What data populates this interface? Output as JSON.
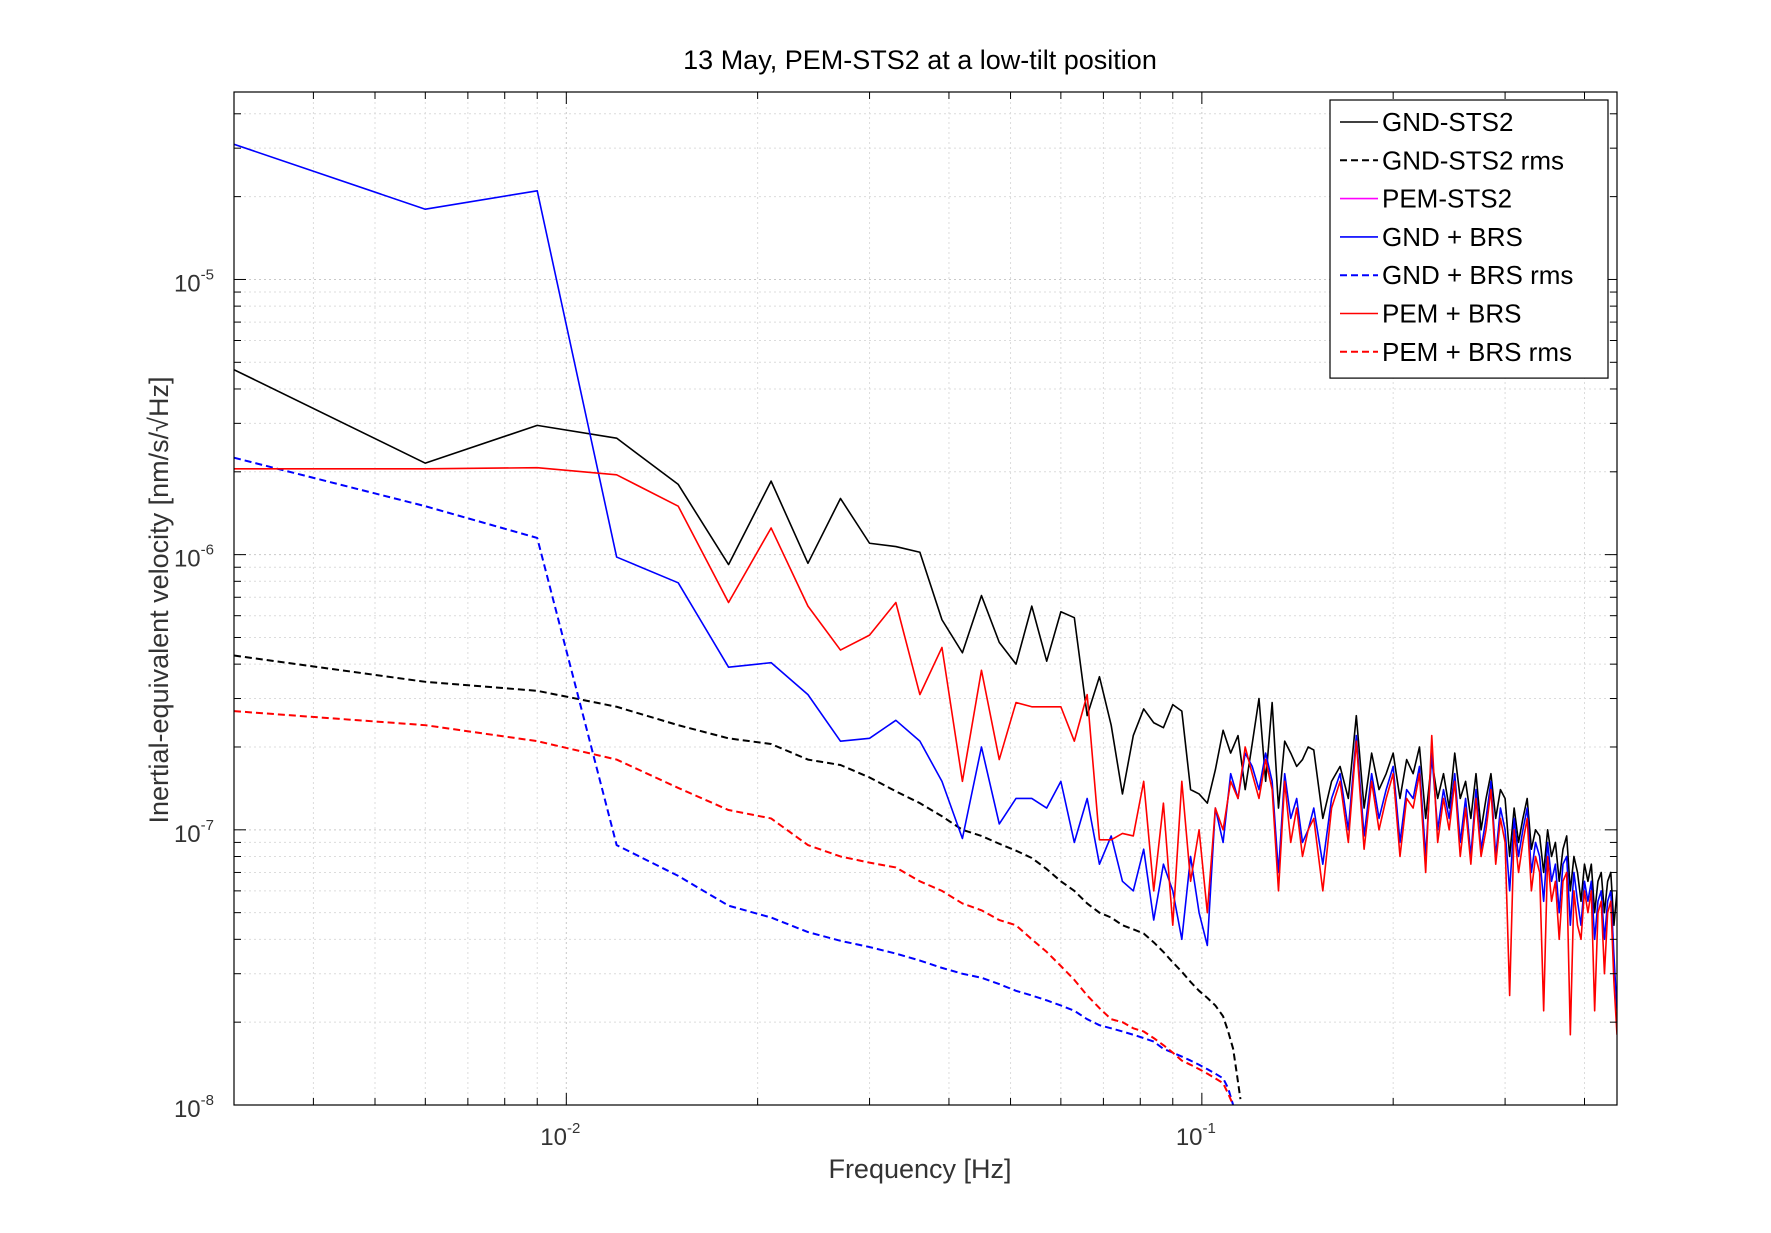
{
  "chart_data": {
    "type": "line",
    "title": "13 May, PEM-STS2 at a low-tilt position",
    "xlabel": "Frequency [Hz]",
    "ylabel": "Inertial-equivalent velocity [nm/s/√Hz]",
    "xscale": "log",
    "yscale": "log",
    "xlim": [
      0.003,
      0.45
    ],
    "ylim": [
      1e-08,
      4.8e-05
    ],
    "grid": true,
    "legend_position": "top-right",
    "x_ticks": [
      {
        "value": 0.01,
        "base": "10",
        "exp": "-2"
      },
      {
        "value": 0.1,
        "base": "10",
        "exp": "-1"
      }
    ],
    "y_ticks": [
      {
        "value": 1e-08,
        "base": "10",
        "exp": "-8"
      },
      {
        "value": 1e-07,
        "base": "10",
        "exp": "-7"
      },
      {
        "value": 1e-06,
        "base": "10",
        "exp": "-6"
      },
      {
        "value": 1e-05,
        "base": "10",
        "exp": "-5"
      }
    ],
    "series": [
      {
        "name": "GND-STS2",
        "color": "#000000",
        "dash": "solid",
        "width": 1.6,
        "x": [
          0.003,
          0.006,
          0.009,
          0.012,
          0.015,
          0.018,
          0.021,
          0.024,
          0.027,
          0.03,
          0.033,
          0.036,
          0.039,
          0.042,
          0.045,
          0.048,
          0.051,
          0.054,
          0.057,
          0.06,
          0.063,
          0.066,
          0.069,
          0.072,
          0.075,
          0.078,
          0.081,
          0.084,
          0.087,
          0.09,
          0.093,
          0.096,
          0.099,
          0.102,
          0.105,
          0.108,
          0.111,
          0.114,
          0.117,
          0.12,
          0.123,
          0.126,
          0.129,
          0.132,
          0.135,
          0.138,
          0.141,
          0.144,
          0.147,
          0.15,
          0.155,
          0.16,
          0.165,
          0.17,
          0.175,
          0.18,
          0.185,
          0.19,
          0.195,
          0.2,
          0.205,
          0.21,
          0.215,
          0.22,
          0.225,
          0.23,
          0.235,
          0.24,
          0.245,
          0.25,
          0.255,
          0.26,
          0.265,
          0.27,
          0.275,
          0.28,
          0.285,
          0.29,
          0.295,
          0.3,
          0.305,
          0.31,
          0.315,
          0.32,
          0.325,
          0.33,
          0.335,
          0.34,
          0.345,
          0.35,
          0.355,
          0.36,
          0.365,
          0.37,
          0.375,
          0.38,
          0.385,
          0.39,
          0.395,
          0.4,
          0.405,
          0.41,
          0.415,
          0.42,
          0.425,
          0.43,
          0.435,
          0.44,
          0.445,
          0.45
        ],
        "y": [
          4.7e-06,
          2.15e-06,
          2.95e-06,
          2.65e-06,
          1.8e-06,
          9.2e-07,
          1.85e-06,
          9.3e-07,
          1.6e-06,
          1.1e-06,
          1.07e-06,
          1.02e-06,
          5.8e-07,
          4.4e-07,
          7.1e-07,
          4.8e-07,
          4e-07,
          6.5e-07,
          4.1e-07,
          6.2e-07,
          5.9e-07,
          2.6e-07,
          3.6e-07,
          2.4e-07,
          1.35e-07,
          2.2e-07,
          2.75e-07,
          2.45e-07,
          2.35e-07,
          2.85e-07,
          2.7e-07,
          1.4e-07,
          1.35e-07,
          1.25e-07,
          1.65e-07,
          2.3e-07,
          1.9e-07,
          2.2e-07,
          1.4e-07,
          2.05e-07,
          3e-07,
          1.5e-07,
          2.9e-07,
          1.2e-07,
          2.1e-07,
          1.9e-07,
          1.7e-07,
          1.8e-07,
          2e-07,
          1.95e-07,
          1.1e-07,
          1.5e-07,
          1.7e-07,
          1.3e-07,
          2.6e-07,
          1.2e-07,
          1.9e-07,
          1.4e-07,
          1.6e-07,
          1.9e-07,
          1.3e-07,
          1.8e-07,
          1.6e-07,
          2e-07,
          1.1e-07,
          1.8e-07,
          1.3e-07,
          1.6e-07,
          1.2e-07,
          1.9e-07,
          1.3e-07,
          1.5e-07,
          1.1e-07,
          1.6e-07,
          1e-07,
          1.3e-07,
          1.6e-07,
          1.1e-07,
          1.4e-07,
          1.3e-07,
          8e-08,
          1.2e-07,
          9e-08,
          1.1e-07,
          1.3e-07,
          8.5e-08,
          1e-07,
          9.5e-08,
          7e-08,
          1e-07,
          8e-08,
          9e-08,
          6.5e-08,
          8.5e-08,
          9.5e-08,
          6e-08,
          8e-08,
          7e-08,
          5.5e-08,
          7.5e-08,
          6.5e-08,
          7.5e-08,
          5e-08,
          6.5e-08,
          7e-08,
          5e-08,
          6.5e-08,
          7e-08,
          4.5e-08,
          6e-08
        ]
      },
      {
        "name": "GND-STS2 rms",
        "color": "#000000",
        "dash": "dashed",
        "width": 2,
        "x": [
          0.003,
          0.006,
          0.009,
          0.012,
          0.015,
          0.018,
          0.021,
          0.024,
          0.027,
          0.03,
          0.033,
          0.036,
          0.039,
          0.042,
          0.045,
          0.048,
          0.051,
          0.054,
          0.057,
          0.06,
          0.063,
          0.066,
          0.069,
          0.072,
          0.075,
          0.078,
          0.081,
          0.084,
          0.087,
          0.09,
          0.093,
          0.096,
          0.099,
          0.102,
          0.105,
          0.108,
          0.11,
          0.112,
          0.1135,
          0.115
        ],
        "y": [
          4.3e-07,
          3.45e-07,
          3.2e-07,
          2.8e-07,
          2.4e-07,
          2.15e-07,
          2.05e-07,
          1.8e-07,
          1.72e-07,
          1.55e-07,
          1.38e-07,
          1.25e-07,
          1.12e-07,
          1e-07,
          9.5e-08,
          8.9e-08,
          8.4e-08,
          7.9e-08,
          7.2e-08,
          6.5e-08,
          6e-08,
          5.4e-08,
          5e-08,
          4.8e-08,
          4.5e-08,
          4.35e-08,
          4.2e-08,
          3.9e-08,
          3.6e-08,
          3.3e-08,
          3.05e-08,
          2.8e-08,
          2.6e-08,
          2.45e-08,
          2.3e-08,
          2.1e-08,
          1.85e-08,
          1.6e-08,
          1.3e-08,
          1.05e-08
        ]
      },
      {
        "name": "PEM-STS2",
        "color": "#ff00ff",
        "dash": "solid",
        "width": 1.6,
        "x": [],
        "y": []
      },
      {
        "name": "GND + BRS",
        "color": "#0000ff",
        "dash": "solid",
        "width": 1.6,
        "x": [
          0.003,
          0.006,
          0.009,
          0.012,
          0.015,
          0.018,
          0.021,
          0.024,
          0.027,
          0.03,
          0.033,
          0.036,
          0.039,
          0.042,
          0.045,
          0.048,
          0.051,
          0.054,
          0.057,
          0.06,
          0.063,
          0.066,
          0.069,
          0.072,
          0.075,
          0.078,
          0.081,
          0.084,
          0.087,
          0.09,
          0.093,
          0.096,
          0.099,
          0.102,
          0.105,
          0.108,
          0.111,
          0.114,
          0.117,
          0.12,
          0.123,
          0.126,
          0.129,
          0.132,
          0.135,
          0.138,
          0.141,
          0.144,
          0.147,
          0.15,
          0.155,
          0.16,
          0.165,
          0.17,
          0.175,
          0.18,
          0.185,
          0.19,
          0.195,
          0.2,
          0.205,
          0.21,
          0.215,
          0.22,
          0.225,
          0.23,
          0.235,
          0.24,
          0.245,
          0.25,
          0.255,
          0.26,
          0.265,
          0.27,
          0.275,
          0.28,
          0.285,
          0.29,
          0.295,
          0.3,
          0.305,
          0.31,
          0.315,
          0.32,
          0.325,
          0.33,
          0.335,
          0.34,
          0.345,
          0.35,
          0.355,
          0.36,
          0.365,
          0.37,
          0.375,
          0.38,
          0.385,
          0.39,
          0.395,
          0.4,
          0.405,
          0.41,
          0.415,
          0.42,
          0.425,
          0.43,
          0.435,
          0.44,
          0.445,
          0.45
        ],
        "y": [
          3.1e-05,
          1.8e-05,
          2.1e-05,
          9.8e-07,
          7.9e-07,
          3.9e-07,
          4.05e-07,
          3.1e-07,
          2.1e-07,
          2.15e-07,
          2.5e-07,
          2.1e-07,
          1.5e-07,
          9.3e-08,
          2e-07,
          1.05e-07,
          1.3e-07,
          1.3e-07,
          1.2e-07,
          1.5e-07,
          9e-08,
          1.3e-07,
          7.5e-08,
          9.5e-08,
          6.5e-08,
          6e-08,
          8.5e-08,
          4.7e-08,
          7.5e-08,
          6e-08,
          4e-08,
          8e-08,
          5e-08,
          3.8e-08,
          1.2e-07,
          9e-08,
          1.6e-07,
          1.3e-07,
          1.9e-07,
          1.7e-07,
          1.4e-07,
          1.9e-07,
          1.5e-07,
          7e-08,
          1.6e-07,
          1.1e-07,
          1.3e-07,
          9e-08,
          1e-07,
          1.2e-07,
          7.5e-08,
          1.3e-07,
          1.6e-07,
          1e-07,
          2.2e-07,
          9.5e-08,
          1.6e-07,
          1.1e-07,
          1.4e-07,
          1.7e-07,
          9e-08,
          1.4e-07,
          1.3e-07,
          1.7e-07,
          8e-08,
          1.9e-07,
          1e-07,
          1.4e-07,
          1.1e-07,
          1.6e-07,
          9e-08,
          1.3e-07,
          8e-08,
          1.4e-07,
          8.5e-08,
          1.1e-07,
          1.5e-07,
          8e-08,
          1.2e-07,
          1e-07,
          6e-08,
          1.1e-07,
          8e-08,
          1e-07,
          1.2e-07,
          7e-08,
          9e-08,
          8e-08,
          5.5e-08,
          9e-08,
          6.5e-08,
          7.5e-08,
          5e-08,
          7.5e-08,
          8e-08,
          4.5e-08,
          7e-08,
          5.5e-08,
          4.5e-08,
          6.5e-08,
          5.5e-08,
          6.5e-08,
          4e-08,
          5.5e-08,
          6e-08,
          4e-08,
          5.5e-08,
          6e-08,
          3.5e-08,
          2.2e-08
        ]
      },
      {
        "name": "GND + BRS rms",
        "color": "#0000ff",
        "dash": "dashed",
        "width": 2,
        "x": [
          0.003,
          0.006,
          0.009,
          0.012,
          0.015,
          0.018,
          0.021,
          0.024,
          0.027,
          0.03,
          0.033,
          0.036,
          0.039,
          0.042,
          0.045,
          0.048,
          0.051,
          0.054,
          0.057,
          0.06,
          0.063,
          0.066,
          0.069,
          0.072,
          0.075,
          0.078,
          0.081,
          0.084,
          0.087,
          0.09,
          0.093,
          0.096,
          0.099,
          0.102,
          0.105,
          0.108,
          0.11,
          0.112
        ],
        "y": [
          2.25e-06,
          1.5e-06,
          1.15e-06,
          8.8e-08,
          6.8e-08,
          5.3e-08,
          4.8e-08,
          4.25e-08,
          3.95e-08,
          3.75e-08,
          3.55e-08,
          3.35e-08,
          3.15e-08,
          3e-08,
          2.9e-08,
          2.75e-08,
          2.6e-08,
          2.5e-08,
          2.4e-08,
          2.3e-08,
          2.2e-08,
          2.05e-08,
          1.95e-08,
          1.9e-08,
          1.85e-08,
          1.8e-08,
          1.75e-08,
          1.7e-08,
          1.6e-08,
          1.55e-08,
          1.5e-08,
          1.45e-08,
          1.4e-08,
          1.35e-08,
          1.3e-08,
          1.25e-08,
          1.15e-08,
          1e-08
        ]
      },
      {
        "name": "PEM + BRS",
        "color": "#ff0000",
        "dash": "solid",
        "width": 1.6,
        "x": [
          0.003,
          0.006,
          0.009,
          0.012,
          0.015,
          0.018,
          0.021,
          0.024,
          0.027,
          0.03,
          0.033,
          0.036,
          0.039,
          0.042,
          0.045,
          0.048,
          0.051,
          0.054,
          0.057,
          0.06,
          0.063,
          0.066,
          0.069,
          0.072,
          0.075,
          0.078,
          0.081,
          0.084,
          0.087,
          0.09,
          0.093,
          0.096,
          0.099,
          0.102,
          0.105,
          0.108,
          0.111,
          0.114,
          0.117,
          0.12,
          0.123,
          0.126,
          0.129,
          0.132,
          0.135,
          0.138,
          0.141,
          0.144,
          0.147,
          0.15,
          0.155,
          0.16,
          0.165,
          0.17,
          0.175,
          0.18,
          0.185,
          0.19,
          0.195,
          0.2,
          0.205,
          0.21,
          0.215,
          0.22,
          0.225,
          0.23,
          0.235,
          0.24,
          0.245,
          0.25,
          0.255,
          0.26,
          0.265,
          0.27,
          0.275,
          0.28,
          0.285,
          0.29,
          0.295,
          0.3,
          0.305,
          0.31,
          0.315,
          0.32,
          0.325,
          0.33,
          0.335,
          0.34,
          0.345,
          0.35,
          0.355,
          0.36,
          0.365,
          0.37,
          0.375,
          0.38,
          0.385,
          0.39,
          0.395,
          0.4,
          0.405,
          0.41,
          0.415,
          0.42,
          0.425,
          0.43,
          0.435,
          0.44,
          0.445,
          0.45
        ],
        "y": [
          2.05e-06,
          2.05e-06,
          2.07e-06,
          1.95e-06,
          1.5e-06,
          6.7e-07,
          1.25e-06,
          6.5e-07,
          4.5e-07,
          5.1e-07,
          6.7e-07,
          3.1e-07,
          4.6e-07,
          1.5e-07,
          3.8e-07,
          1.8e-07,
          2.9e-07,
          2.8e-07,
          2.8e-07,
          2.8e-07,
          2.1e-07,
          3.1e-07,
          9.2e-08,
          9.2e-08,
          9.7e-08,
          9.5e-08,
          1.5e-07,
          6e-08,
          1.25e-07,
          4.5e-08,
          1.5e-07,
          6.5e-08,
          1e-07,
          5e-08,
          1.2e-07,
          1e-07,
          1.5e-07,
          1.3e-07,
          2e-07,
          1.6e-07,
          1.3e-07,
          1.8e-07,
          1.4e-07,
          6e-08,
          1.5e-07,
          9e-08,
          1.2e-07,
          8e-08,
          1e-07,
          1.1e-07,
          6e-08,
          1.2e-07,
          1.5e-07,
          9e-08,
          2.1e-07,
          8.5e-08,
          1.5e-07,
          1e-07,
          1.3e-07,
          1.6e-07,
          8e-08,
          1.3e-07,
          1.2e-07,
          1.6e-07,
          7e-08,
          2.2e-07,
          9e-08,
          1.3e-07,
          1e-07,
          1.5e-07,
          8e-08,
          1.2e-07,
          7.5e-08,
          1.3e-07,
          8e-08,
          1e-07,
          1.4e-07,
          7.5e-08,
          1.1e-07,
          9e-08,
          2.5e-08,
          1e-07,
          7e-08,
          9e-08,
          1.1e-07,
          6e-08,
          8e-08,
          7e-08,
          2.2e-08,
          8e-08,
          5.5e-08,
          6.5e-08,
          4e-08,
          6.5e-08,
          7e-08,
          1.8e-08,
          6e-08,
          4.5e-08,
          4e-08,
          6e-08,
          5e-08,
          6e-08,
          2.2e-08,
          5e-08,
          5.5e-08,
          3e-08,
          5e-08,
          5.5e-08,
          2.8e-08,
          1.8e-08
        ]
      },
      {
        "name": "PEM + BRS rms",
        "color": "#ff0000",
        "dash": "dashed",
        "width": 2,
        "x": [
          0.003,
          0.006,
          0.009,
          0.012,
          0.015,
          0.018,
          0.021,
          0.024,
          0.027,
          0.03,
          0.033,
          0.036,
          0.039,
          0.042,
          0.045,
          0.048,
          0.051,
          0.054,
          0.057,
          0.06,
          0.063,
          0.066,
          0.069,
          0.072,
          0.075,
          0.078,
          0.081,
          0.084,
          0.087,
          0.09,
          0.093,
          0.096,
          0.099,
          0.102,
          0.105,
          0.108,
          0.11,
          0.112
        ],
        "y": [
          2.7e-07,
          2.4e-07,
          2.1e-07,
          1.8e-07,
          1.42e-07,
          1.18e-07,
          1.1e-07,
          8.8e-08,
          8e-08,
          7.6e-08,
          7.3e-08,
          6.5e-08,
          6e-08,
          5.4e-08,
          5.1e-08,
          4.7e-08,
          4.5e-08,
          4e-08,
          3.6e-08,
          3.2e-08,
          2.85e-08,
          2.5e-08,
          2.25e-08,
          2.05e-08,
          2e-08,
          1.9e-08,
          1.85e-08,
          1.75e-08,
          1.65e-08,
          1.55e-08,
          1.45e-08,
          1.4e-08,
          1.35e-08,
          1.3e-08,
          1.25e-08,
          1.2e-08,
          1.1e-08,
          1e-08
        ]
      }
    ]
  }
}
